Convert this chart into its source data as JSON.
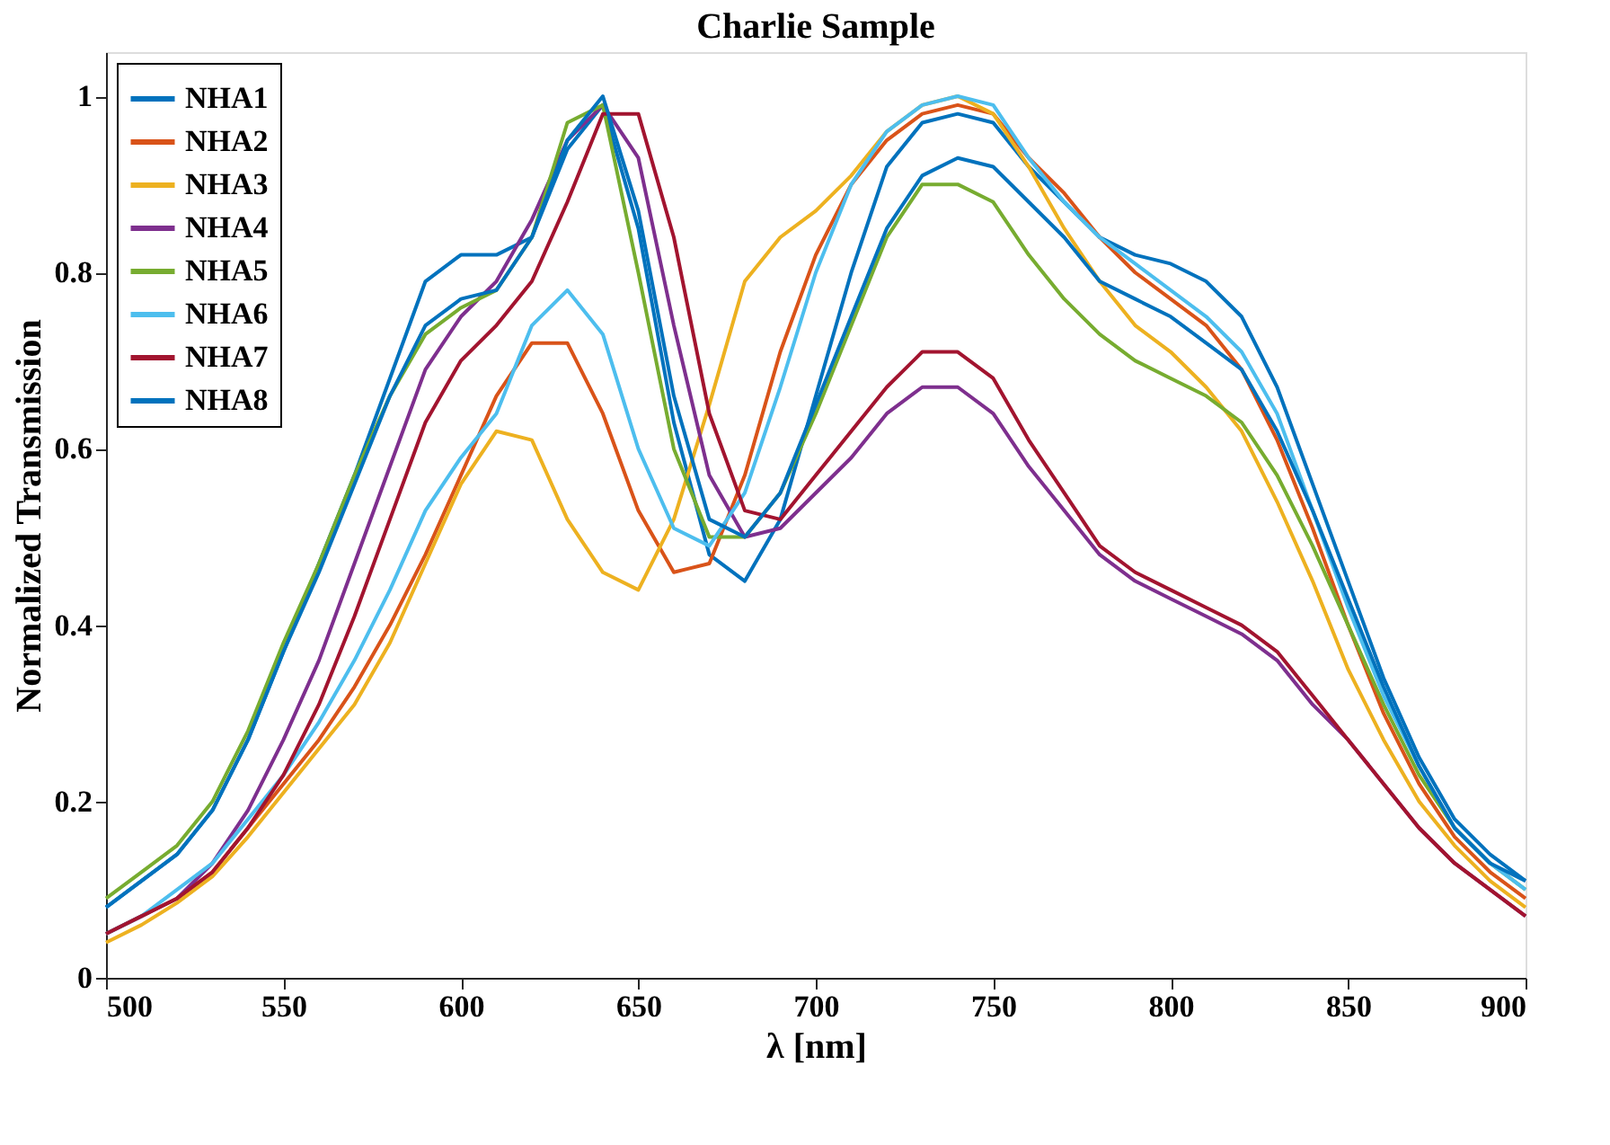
{
  "chart_data": {
    "type": "line",
    "title": "Charlie Sample",
    "xlabel": "λ [nm]",
    "ylabel": "Normalized Transmission",
    "x": [
      500,
      510,
      520,
      530,
      540,
      550,
      560,
      570,
      580,
      590,
      600,
      610,
      620,
      630,
      640,
      650,
      660,
      670,
      680,
      690,
      700,
      710,
      720,
      730,
      740,
      750,
      760,
      770,
      780,
      790,
      800,
      810,
      820,
      830,
      840,
      850,
      860,
      870,
      880,
      890,
      900
    ],
    "series": [
      {
        "name": "NHA1",
        "color": "#0072bd",
        "values": [
          0.08,
          0.11,
          0.14,
          0.19,
          0.27,
          0.37,
          0.47,
          0.57,
          0.68,
          0.79,
          0.82,
          0.82,
          0.84,
          0.94,
          0.99,
          0.85,
          0.63,
          0.48,
          0.45,
          0.52,
          0.66,
          0.8,
          0.92,
          0.97,
          0.98,
          0.97,
          0.92,
          0.88,
          0.84,
          0.82,
          0.81,
          0.79,
          0.75,
          0.67,
          0.56,
          0.45,
          0.34,
          0.25,
          0.18,
          0.14,
          0.11
        ]
      },
      {
        "name": "NHA2",
        "color": "#d95319",
        "values": [
          0.05,
          0.07,
          0.09,
          0.12,
          0.17,
          0.22,
          0.27,
          0.33,
          0.4,
          0.48,
          0.57,
          0.66,
          0.72,
          0.72,
          0.64,
          0.53,
          0.46,
          0.47,
          0.57,
          0.71,
          0.82,
          0.9,
          0.95,
          0.98,
          0.99,
          0.98,
          0.93,
          0.89,
          0.84,
          0.8,
          0.77,
          0.74,
          0.69,
          0.61,
          0.51,
          0.4,
          0.3,
          0.22,
          0.16,
          0.12,
          0.09
        ]
      },
      {
        "name": "NHA3",
        "color": "#edb120",
        "values": [
          0.04,
          0.06,
          0.085,
          0.115,
          0.16,
          0.21,
          0.26,
          0.31,
          0.38,
          0.47,
          0.56,
          0.62,
          0.61,
          0.52,
          0.46,
          0.44,
          0.52,
          0.65,
          0.79,
          0.84,
          0.87,
          0.91,
          0.96,
          0.99,
          1.0,
          0.98,
          0.92,
          0.85,
          0.79,
          0.74,
          0.71,
          0.67,
          0.62,
          0.54,
          0.45,
          0.35,
          0.27,
          0.2,
          0.15,
          0.11,
          0.08
        ]
      },
      {
        "name": "NHA4",
        "color": "#7e2f8e",
        "values": [
          0.05,
          0.07,
          0.09,
          0.13,
          0.19,
          0.27,
          0.36,
          0.47,
          0.58,
          0.69,
          0.75,
          0.79,
          0.86,
          0.95,
          0.99,
          0.93,
          0.74,
          0.57,
          0.5,
          0.51,
          0.55,
          0.59,
          0.64,
          0.67,
          0.67,
          0.64,
          0.58,
          0.53,
          0.48,
          0.45,
          0.43,
          0.41,
          0.39,
          0.36,
          0.31,
          0.27,
          0.22,
          0.17,
          0.13,
          0.1,
          0.07
        ]
      },
      {
        "name": "NHA5",
        "color": "#77ac30",
        "values": [
          0.09,
          0.12,
          0.15,
          0.2,
          0.28,
          0.38,
          0.47,
          0.57,
          0.66,
          0.73,
          0.76,
          0.78,
          0.84,
          0.97,
          0.99,
          0.8,
          0.6,
          0.5,
          0.5,
          0.55,
          0.64,
          0.74,
          0.84,
          0.9,
          0.9,
          0.88,
          0.82,
          0.77,
          0.73,
          0.7,
          0.68,
          0.66,
          0.63,
          0.57,
          0.49,
          0.4,
          0.31,
          0.23,
          0.17,
          0.13,
          0.1
        ]
      },
      {
        "name": "NHA6",
        "color": "#4dbeee",
        "values": [
          0.05,
          0.07,
          0.1,
          0.13,
          0.18,
          0.23,
          0.29,
          0.36,
          0.44,
          0.53,
          0.59,
          0.64,
          0.74,
          0.78,
          0.73,
          0.6,
          0.51,
          0.49,
          0.55,
          0.67,
          0.8,
          0.9,
          0.96,
          0.99,
          1.0,
          0.99,
          0.93,
          0.88,
          0.84,
          0.81,
          0.78,
          0.75,
          0.71,
          0.64,
          0.53,
          0.42,
          0.32,
          0.24,
          0.17,
          0.13,
          0.1
        ]
      },
      {
        "name": "NHA7",
        "color": "#a2142f",
        "values": [
          0.05,
          0.07,
          0.09,
          0.12,
          0.17,
          0.23,
          0.31,
          0.41,
          0.52,
          0.63,
          0.7,
          0.74,
          0.79,
          0.88,
          0.98,
          0.98,
          0.84,
          0.64,
          0.53,
          0.52,
          0.57,
          0.62,
          0.67,
          0.71,
          0.71,
          0.68,
          0.61,
          0.55,
          0.49,
          0.46,
          0.44,
          0.42,
          0.4,
          0.37,
          0.32,
          0.27,
          0.22,
          0.17,
          0.13,
          0.1,
          0.07
        ]
      },
      {
        "name": "NHA8",
        "color": "#0072bd",
        "values": [
          0.08,
          0.11,
          0.14,
          0.19,
          0.27,
          0.37,
          0.46,
          0.56,
          0.66,
          0.74,
          0.77,
          0.78,
          0.84,
          0.95,
          1.0,
          0.87,
          0.66,
          0.52,
          0.5,
          0.55,
          0.65,
          0.75,
          0.85,
          0.91,
          0.93,
          0.92,
          0.88,
          0.84,
          0.79,
          0.77,
          0.75,
          0.72,
          0.69,
          0.62,
          0.53,
          0.43,
          0.33,
          0.24,
          0.17,
          0.13,
          0.11
        ]
      }
    ],
    "xlim": [
      500,
      900
    ],
    "xticks": [
      500,
      550,
      600,
      650,
      700,
      750,
      800,
      850,
      900
    ],
    "ylim": [
      0,
      1.05
    ],
    "yticks": [
      0,
      0.2,
      0.4,
      0.6,
      0.8,
      1
    ],
    "grid": false,
    "legend": "top left",
    "line_style": "solid",
    "marker": "none"
  }
}
